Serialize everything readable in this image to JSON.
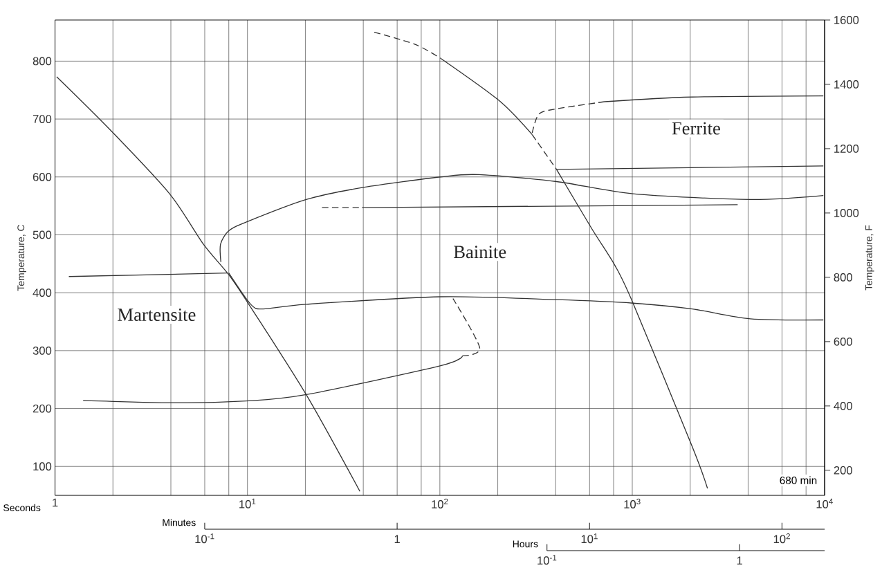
{
  "chart_data": {
    "type": "line",
    "xlabel": "Seconds",
    "ylabel": "Temperature, C",
    "y2label": "Temperature, F",
    "log": "x",
    "grid": true,
    "xlim": [
      1,
      10000
    ],
    "ylim": [
      50,
      871
    ],
    "y2lim": [
      122,
      1600
    ],
    "xticks": [
      1,
      {
        "value": 2,
        "label": null
      },
      {
        "value": 4,
        "label": null
      },
      {
        "value": 6,
        "label": null
      },
      {
        "value": 8,
        "label": null
      },
      {
        "value": 10,
        "label": "10$^{1}$"
      },
      {
        "value": 20,
        "label": null
      },
      {
        "value": 40,
        "label": null
      },
      {
        "value": 60,
        "label": null
      },
      {
        "value": 80,
        "label": null
      },
      {
        "value": 100,
        "label": "10$^{2}$"
      },
      {
        "value": 200,
        "label": null
      },
      {
        "value": 400,
        "label": null
      },
      {
        "value": 600,
        "label": null
      },
      {
        "value": 800,
        "label": null
      },
      {
        "value": 1000,
        "label": "10$^{3}$"
      },
      {
        "value": 2000,
        "label": null
      },
      {
        "value": 4000,
        "label": null
      },
      {
        "value": 6000,
        "label": null
      },
      {
        "value": 8000,
        "label": null
      },
      {
        "value": 10000,
        "label": "10$^{4}$"
      }
    ],
    "yticks": [
      100,
      200,
      300,
      400,
      500,
      600,
      700,
      800
    ],
    "y2ticks": [
      200,
      400,
      600,
      800,
      1000,
      1200,
      1400,
      1600
    ],
    "series": [
      {
        "color": "#333333",
        "line_style": "solid",
        "x": [
          1.02,
          1.94,
          3.94,
          5.9,
          8.0,
          10.3,
          20.2,
          38.4
        ],
        "values": [
          773,
          681,
          571,
          484,
          431,
          377,
          224,
          57
        ]
      },
      {
        "color": "#333333",
        "line_style": "dashed",
        "x": [
          45.6,
          74.3,
          100.8
        ],
        "values": [
          850,
          829,
          805
        ]
      },
      {
        "color": "#333333",
        "line_style": "solid",
        "x": [
          100.8,
          203,
          302
        ],
        "values": [
          805,
          732,
          673
        ]
      },
      {
        "color": "#333333",
        "line_style": "dashed",
        "x": [
          302,
          404
        ],
        "values": [
          673,
          613
        ]
      },
      {
        "color": "#333333",
        "line_style": "solid",
        "x": [
          404,
          615,
          813,
          1009,
          2050,
          2460
        ],
        "values": [
          613,
          511,
          447,
          382,
          134,
          62
        ]
      },
      {
        "color": "#333333",
        "line_style": "dashed",
        "x": [
          302,
          326,
          394,
          719
        ],
        "values": [
          676,
          708,
          717,
          730
        ]
      },
      {
        "color": "#333333",
        "line_style": "solid",
        "x": [
          719,
          2050,
          9840
        ],
        "values": [
          730,
          738,
          740
        ]
      },
      {
        "color": "#333333",
        "line_style": "solid",
        "x": [
          404,
          9840
        ],
        "values": [
          613,
          619
        ]
      },
      {
        "color": "#333333",
        "line_style": "solid",
        "x": [
          7.28,
          7.25,
          8.0,
          9.84,
          20.2,
          40,
          101,
          159,
          404,
          1009,
          4100,
          9840
        ],
        "values": [
          453,
          484,
          507,
          522,
          561,
          582,
          600,
          604,
          592,
          571,
          561,
          568
        ]
      },
      {
        "color": "#333333",
        "line_style": "solid",
        "x": [
          8.0,
          10.4,
          12.1,
          20.2,
          101,
          404,
          1009,
          2050,
          4100,
          9840
        ],
        "values": [
          434,
          380,
          372,
          380,
          393,
          388,
          382,
          372,
          355,
          353
        ]
      },
      {
        "color": "#333333",
        "line_style": "solid",
        "x": [
          1.18,
          7.9
        ],
        "values": [
          428,
          434
        ]
      },
      {
        "color": "#333333",
        "line_style": "solid",
        "x": [
          1.4,
          4.03,
          9.84,
          20.2,
          101,
          131
        ],
        "values": [
          214,
          210,
          213,
          224,
          274,
          291
        ]
      },
      {
        "color": "#333333",
        "line_style": "dashed",
        "x": [
          131,
          161,
          117
        ],
        "values": [
          291,
          305,
          390
        ]
      },
      {
        "color": "#333333",
        "line_style": "dashed",
        "x": [
          24.4,
          39.4
        ],
        "values": [
          547,
          547
        ]
      },
      {
        "color": "#333333",
        "line_style": "solid",
        "x": [
          39.4,
          3530
        ],
        "values": [
          547,
          552
        ]
      }
    ],
    "annotations": [
      "680 min",
      "Minutes",
      "10$^{-1}$",
      "1",
      "10$^{1}$",
      "10$^{2}$",
      "Hours",
      "10$^{-1}$",
      "1",
      "Martensite",
      "Bainite",
      "Ferrite"
    ]
  }
}
